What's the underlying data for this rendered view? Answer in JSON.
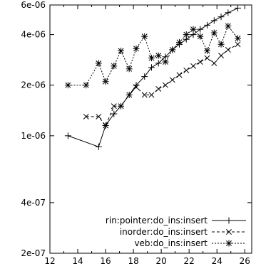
{
  "chart_data": {
    "type": "line",
    "title": "",
    "xlabel": "",
    "ylabel": "",
    "x_scale": "linear",
    "y_scale": "log",
    "xlim": [
      12,
      26.5
    ],
    "ylim": [
      2e-07,
      6e-06
    ],
    "x_ticks": [
      12,
      14,
      16,
      18,
      20,
      22,
      24,
      26
    ],
    "x_tick_labels": [
      "12",
      "14",
      "16",
      "18",
      "20",
      "22",
      "24",
      "26"
    ],
    "y_ticks": [
      2e-07,
      4e-07,
      1e-06,
      2e-06,
      4e-06,
      6e-06
    ],
    "y_tick_labels": [
      "2e-07",
      "4e-07",
      "1e-06",
      "2e-06",
      "4e-06",
      "6e-06"
    ],
    "grid": false,
    "legend_position": "bottom-right",
    "series": [
      {
        "name": "rin:pointer:do_ins:insert",
        "marker": "plus",
        "line_style": "solid",
        "points": [
          [
            13.3,
            1e-06
          ],
          [
            15.5,
            8.6e-07
          ],
          [
            16.0,
            1.15e-06
          ],
          [
            16.6,
            1.35e-06
          ],
          [
            17.1,
            1.5e-06
          ],
          [
            17.7,
            1.75e-06
          ],
          [
            18.2,
            2e-06
          ],
          [
            18.8,
            2.25e-06
          ],
          [
            19.3,
            2.55e-06
          ],
          [
            19.8,
            2.7e-06
          ],
          [
            20.3,
            2.95e-06
          ],
          [
            20.8,
            3.25e-06
          ],
          [
            21.3,
            3.5e-06
          ],
          [
            21.8,
            3.75e-06
          ],
          [
            22.3,
            4e-06
          ],
          [
            22.8,
            4.3e-06
          ],
          [
            23.3,
            4.55e-06
          ],
          [
            23.8,
            4.85e-06
          ],
          [
            24.3,
            5.1e-06
          ],
          [
            24.8,
            5.4e-06
          ],
          [
            25.5,
            5.75e-06
          ]
        ]
      },
      {
        "name": "inorder:do_ins:insert",
        "marker": "cross",
        "line_style": "dashed",
        "points": [
          [
            14.6,
            1.3e-06
          ],
          [
            15.5,
            1.3e-06
          ],
          [
            16.0,
            1.15e-06
          ],
          [
            16.6,
            1.5e-06
          ],
          [
            17.1,
            1.5e-06
          ],
          [
            17.7,
            1.75e-06
          ],
          [
            18.2,
            1.95e-06
          ],
          [
            18.8,
            1.75e-06
          ],
          [
            19.3,
            1.75e-06
          ],
          [
            19.8,
            1.9e-06
          ],
          [
            20.3,
            2e-06
          ],
          [
            20.8,
            2.15e-06
          ],
          [
            21.3,
            2.3e-06
          ],
          [
            21.8,
            2.45e-06
          ],
          [
            22.3,
            2.6e-06
          ],
          [
            22.8,
            2.75e-06
          ],
          [
            23.3,
            2.9e-06
          ],
          [
            23.8,
            2.7e-06
          ],
          [
            24.3,
            3e-06
          ],
          [
            24.8,
            3.25e-06
          ],
          [
            25.5,
            3.5e-06
          ]
        ]
      },
      {
        "name": "veb:do_ins:insert",
        "marker": "star",
        "line_style": "dotted",
        "points": [
          [
            13.3,
            2e-06
          ],
          [
            14.6,
            2e-06
          ],
          [
            15.5,
            2.7e-06
          ],
          [
            16.0,
            2.1e-06
          ],
          [
            16.6,
            2.6e-06
          ],
          [
            17.1,
            3.2e-06
          ],
          [
            17.7,
            2.5e-06
          ],
          [
            18.2,
            3.3e-06
          ],
          [
            18.8,
            3.9e-06
          ],
          [
            19.3,
            2.9e-06
          ],
          [
            19.8,
            3e-06
          ],
          [
            20.3,
            2.75e-06
          ],
          [
            20.8,
            3.25e-06
          ],
          [
            21.3,
            3.6e-06
          ],
          [
            21.8,
            4e-06
          ],
          [
            22.3,
            4.3e-06
          ],
          [
            22.8,
            3.9e-06
          ],
          [
            23.3,
            3.2e-06
          ],
          [
            23.8,
            4.1e-06
          ],
          [
            24.3,
            3.5e-06
          ],
          [
            24.8,
            4.5e-06
          ],
          [
            25.5,
            3.8e-06
          ]
        ]
      }
    ]
  }
}
